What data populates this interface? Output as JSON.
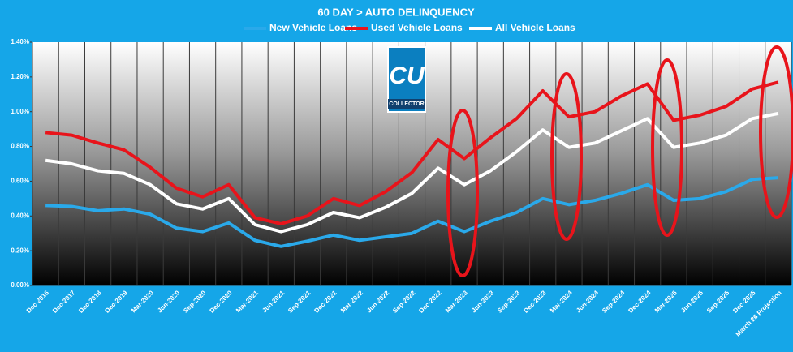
{
  "chart_data": {
    "type": "line",
    "title": "60 DAY > AUTO DELINQUENCY",
    "categories": [
      "Dec-2016",
      "Dec-2017",
      "Dec-2018",
      "Dec-2019",
      "Mar-2020",
      "Jun-2020",
      "Sep-2020",
      "Dec-2020",
      "Mar-2021",
      "Jun-2021",
      "Sep-2021",
      "Dec-2021",
      "Mar-2022",
      "Jun-2022",
      "Sep-2022",
      "Dec-2022",
      "Mar-2023",
      "Jun-2023",
      "Sep-2023",
      "Dec-2023",
      "Mar-2024",
      "Jun-2024",
      "Sep-2024",
      "Dec-2024",
      "Mar-2025",
      "Jun-2025",
      "Sep-2025",
      "Dec-2025",
      "March 26 Projection"
    ],
    "series": [
      {
        "name": "New Vehicle Loans",
        "color": "#2aa9ea",
        "values": [
          0.46,
          0.455,
          0.43,
          0.44,
          0.41,
          0.33,
          0.31,
          0.36,
          0.26,
          0.225,
          0.255,
          0.29,
          0.26,
          0.28,
          0.3,
          0.37,
          0.31,
          0.37,
          0.42,
          0.5,
          0.465,
          0.49,
          0.53,
          0.58,
          0.49,
          0.5,
          0.54,
          0.61,
          0.62
        ]
      },
      {
        "name": "Used Vehicle Loans",
        "color": "#e8141b",
        "values": [
          0.88,
          0.865,
          0.82,
          0.78,
          0.68,
          0.56,
          0.51,
          0.58,
          0.39,
          0.355,
          0.4,
          0.5,
          0.46,
          0.54,
          0.65,
          0.84,
          0.73,
          0.85,
          0.96,
          1.12,
          0.97,
          1.0,
          1.09,
          1.16,
          0.95,
          0.98,
          1.03,
          1.13,
          1.17
        ]
      },
      {
        "name": "All Vehicle Loans",
        "color": "#ffffff",
        "values": [
          0.72,
          0.7,
          0.66,
          0.645,
          0.58,
          0.47,
          0.44,
          0.5,
          0.35,
          0.31,
          0.35,
          0.42,
          0.39,
          0.45,
          0.53,
          0.675,
          0.58,
          0.66,
          0.77,
          0.895,
          0.795,
          0.82,
          0.89,
          0.96,
          0.795,
          0.82,
          0.865,
          0.96,
          0.99
        ]
      }
    ],
    "ylim": [
      0,
      1.4
    ],
    "yticks": [
      {
        "value": 0,
        "label": "0.00%"
      },
      {
        "value": 0.2,
        "label": "0.20%"
      },
      {
        "value": 0.4,
        "label": "0.40%"
      },
      {
        "value": 0.6,
        "label": "0.60%"
      },
      {
        "value": 0.8,
        "label": "0.80%"
      },
      {
        "value": 1.0,
        "label": "1.00%"
      },
      {
        "value": 1.2,
        "label": "1.20%"
      },
      {
        "value": 1.4,
        "label": "1.40%"
      }
    ],
    "grid": true
  },
  "logo": {
    "mark": "CU",
    "caption": "COLLECTOR"
  }
}
